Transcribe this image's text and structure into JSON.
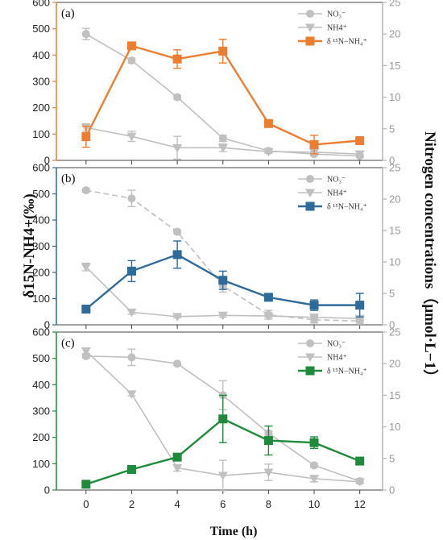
{
  "chart_data": {
    "type": "line",
    "x": [
      0,
      2,
      4,
      6,
      8,
      10,
      12
    ],
    "xlabel": "Time (h)",
    "xlim": [
      -1.3,
      13
    ],
    "ylabel_left": "δ15N-NH4+(‰)",
    "ylabel_right": "Nitrogen concentrations（μmol·L−1）",
    "yticks_left": [
      0,
      100,
      200,
      300,
      400,
      500,
      600
    ],
    "yticks_right": [
      0,
      5,
      10,
      15,
      20,
      25
    ],
    "ylim_left": [
      0,
      600
    ],
    "ylim_right": [
      0,
      25
    ],
    "legend_position": "top-right",
    "panels": [
      {
        "label": "(a)",
        "color": "#ED7D31",
        "legend": [
          "NO₃⁻",
          "NH4⁺",
          "δ ¹⁵N−NH₄⁺"
        ],
        "series": [
          {
            "name": "NO₃⁻",
            "axis": "right",
            "color": "#c0c0c0",
            "marker": "circle",
            "dash": "solid",
            "values": [
              20.0,
              15.8,
              10.0,
              3.5,
              1.5,
              1.0,
              0.7
            ],
            "errors": [
              0.9,
              0.4,
              0.3,
              0.5,
              0.3,
              0.2,
              0.2
            ]
          },
          {
            "name": "NH4⁺",
            "axis": "right",
            "color": "#c0c0c0",
            "marker": "triangle",
            "dash": "solid",
            "values": [
              5.2,
              3.8,
              2.0,
              2.0,
              1.4,
              1.3,
              1.0
            ],
            "errors": [
              0.6,
              0.8,
              1.8,
              0.6,
              0.3,
              0.3,
              0.4
            ]
          },
          {
            "name": "δ ¹⁵N−NH₄⁺",
            "axis": "left",
            "color": "#ED7D31",
            "marker": "square",
            "dash": "solid",
            "values": [
              90,
              435,
              385,
              415,
              140,
              60,
              75
            ],
            "errors": [
              40,
              10,
              35,
              45,
              10,
              35,
              12
            ]
          }
        ]
      },
      {
        "label": "(b)",
        "color": "#2E6B9A",
        "legend": [
          "NO₃⁻",
          "NH4⁺",
          "δ ¹⁵N−NH₄⁺"
        ],
        "series": [
          {
            "name": "NO₃⁻",
            "axis": "right",
            "color": "#c0c0c0",
            "marker": "circle",
            "dash": "dashed",
            "values": [
              21.4,
              20.1,
              14.8,
              6.2,
              1.6,
              0.8,
              0.6
            ],
            "errors": [
              0.3,
              1.3,
              0.3,
              1.0,
              0.7,
              0.5,
              0.3
            ]
          },
          {
            "name": "NH4⁺",
            "axis": "right",
            "color": "#c0c0c0",
            "marker": "triangle",
            "dash": "solid",
            "values": [
              9.2,
              2.0,
              1.3,
              1.5,
              1.4,
              1.2,
              1.0
            ],
            "errors": [
              0.6,
              0.3,
              0.2,
              0.3,
              0.2,
              0.3,
              0.2
            ]
          },
          {
            "name": "δ ¹⁵N−NH₄⁺",
            "axis": "left",
            "color": "#2E6B9A",
            "marker": "square",
            "dash": "solid",
            "values": [
              60,
              205,
              268,
              170,
              105,
              75,
              75
            ],
            "errors": [
              8,
              40,
              52,
              35,
              10,
              20,
              45
            ]
          }
        ]
      },
      {
        "label": "(c)",
        "color": "#1F8A3C",
        "legend": [
          "NO₃⁻",
          "NH4⁺",
          "δ ¹⁵N−NH₄⁺"
        ],
        "series": [
          {
            "name": "NO₃⁻",
            "axis": "right",
            "color": "#c0c0c0",
            "marker": "circle",
            "dash": "solid",
            "values": [
              21.2,
              21.0,
              20.0,
              15.0,
              9.0,
              3.9,
              1.4
            ],
            "errors": [
              0.3,
              1.3,
              0.2,
              2.3,
              0.3,
              0.3,
              0.3
            ]
          },
          {
            "name": "NH4⁺",
            "axis": "right",
            "color": "#c0c0c0",
            "marker": "triangle",
            "dash": "solid",
            "values": [
              22.0,
              15.2,
              3.5,
              2.3,
              2.8,
              1.8,
              1.3
            ],
            "errors": [
              0.4,
              0.3,
              0.5,
              2.4,
              1.3,
              0.5,
              0.3
            ]
          },
          {
            "name": "δ ¹⁵N−NH₄⁺",
            "axis": "left",
            "color": "#1F8A3C",
            "marker": "square",
            "dash": "solid",
            "values": [
              22,
              78,
              125,
              270,
              188,
              180,
              110
            ],
            "errors": [
              5,
              8,
              10,
              90,
              55,
              22,
              8
            ]
          }
        ]
      }
    ]
  }
}
